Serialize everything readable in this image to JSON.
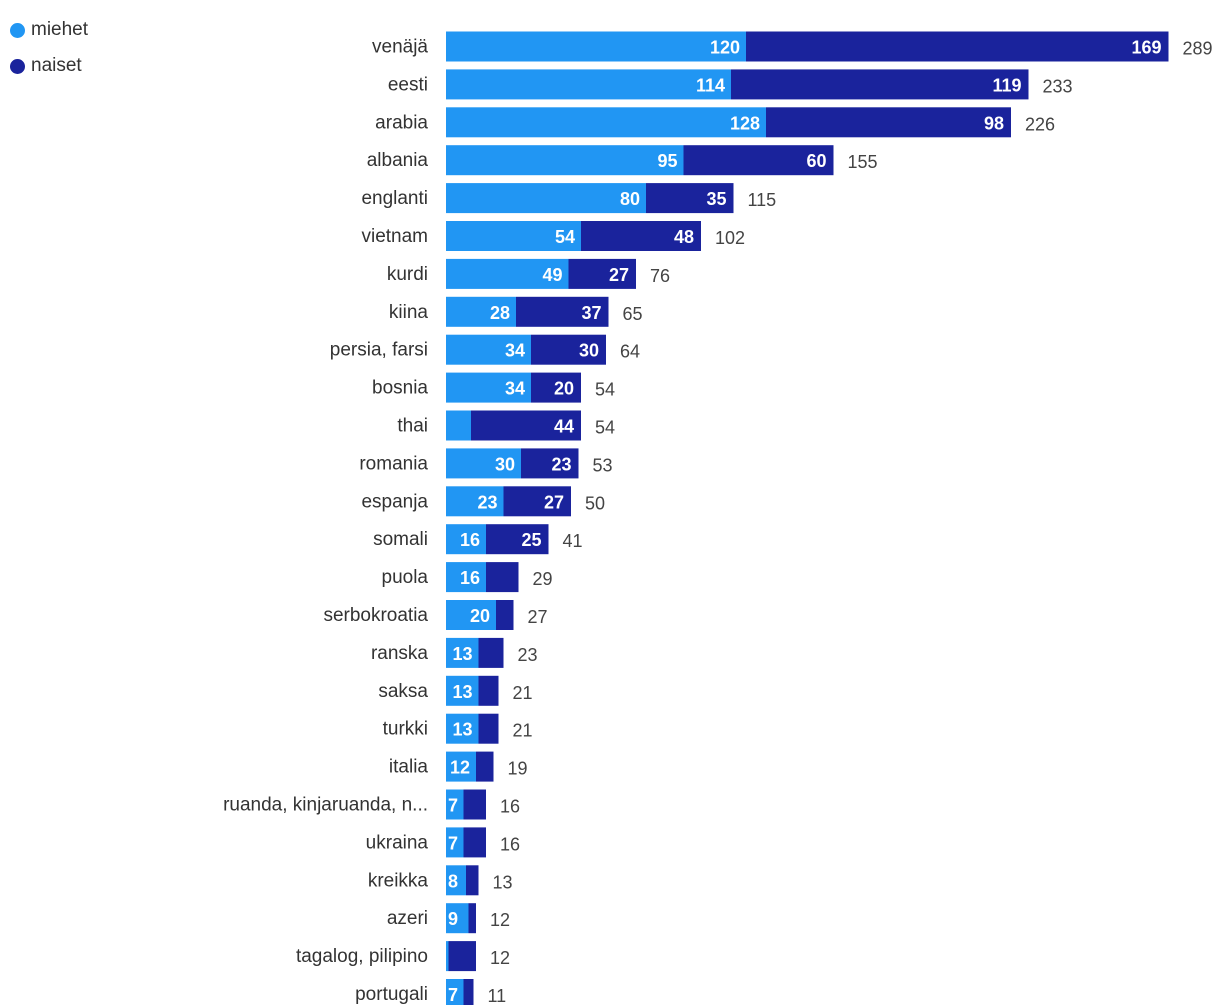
{
  "chart_data": {
    "type": "bar",
    "orientation": "horizontal",
    "stacked": true,
    "legend_placement": "top-left",
    "grid": false,
    "colors": {
      "miehet": "#2196f3",
      "naiset": "#1a239c",
      "inside_label": "#ffffff",
      "total_label": "#444444",
      "category_label": "#333333"
    },
    "categories": [
      "venäjä",
      "eesti",
      "arabia",
      "albania",
      "englanti",
      "vietnam",
      "kurdi",
      "kiina",
      "persia, farsi",
      "bosnia",
      "thai",
      "romania",
      "espanja",
      "somali",
      "puola",
      "serbokroatia",
      "ranska",
      "saksa",
      "turkki",
      "italia",
      "ruanda, kinjaruanda, n...",
      "ukraina",
      "kreikka",
      "azeri",
      "tagalog, pilipino",
      "portugali"
    ],
    "series": [
      {
        "name": "miehet",
        "values": [
          120,
          114,
          128,
          95,
          80,
          54,
          49,
          28,
          34,
          34,
          10,
          30,
          23,
          16,
          16,
          20,
          13,
          13,
          13,
          12,
          7,
          7,
          8,
          9,
          1,
          7
        ],
        "labels": [
          "120",
          "114",
          "128",
          "95",
          "80",
          "54",
          "49",
          "28",
          "34",
          "34",
          "",
          "30",
          "23",
          "16",
          "16",
          "20",
          "13",
          "13",
          "13",
          "12",
          "7",
          "7",
          "8",
          "9",
          "",
          "7"
        ]
      },
      {
        "name": "naiset",
        "values": [
          169,
          119,
          98,
          60,
          35,
          48,
          27,
          37,
          30,
          20,
          44,
          23,
          27,
          25,
          13,
          7,
          10,
          8,
          8,
          7,
          9,
          9,
          5,
          3,
          11,
          4
        ],
        "labels": [
          "169",
          "119",
          "98",
          "60",
          "35",
          "48",
          "27",
          "37",
          "30",
          "20",
          "44",
          "23",
          "27",
          "25",
          "",
          "",
          "",
          "",
          "",
          "",
          "",
          "",
          "",
          "",
          "",
          ""
        ]
      }
    ],
    "totals": [
      "289",
      "233",
      "226",
      "155",
      "115",
      "102",
      "76",
      "65",
      "64",
      "54",
      "54",
      "53",
      "50",
      "41",
      "29",
      "27",
      "23",
      "21",
      "21",
      "19",
      "16",
      "16",
      "13",
      "12",
      "12",
      "11"
    ]
  }
}
